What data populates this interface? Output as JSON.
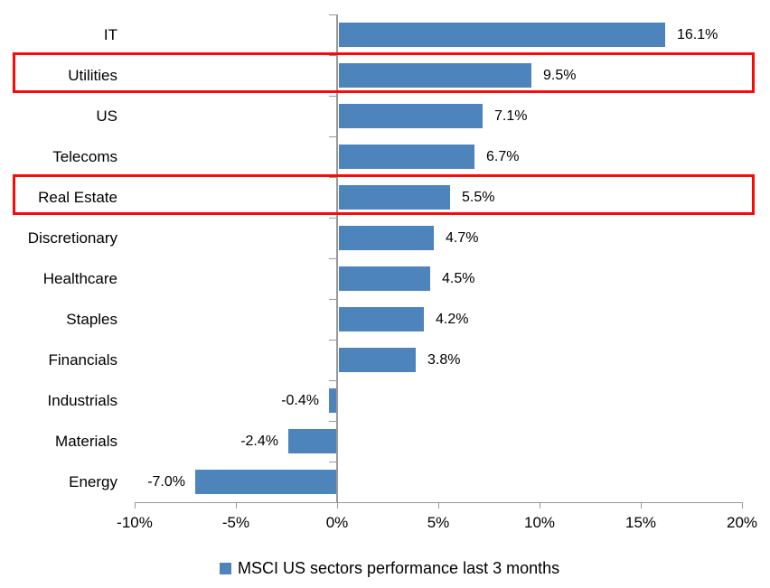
{
  "chart_data": {
    "type": "bar",
    "orientation": "horizontal",
    "categories": [
      "IT",
      "Utilities",
      "US",
      "Telecoms",
      "Real Estate",
      "Discretionary",
      "Healthcare",
      "Staples",
      "Financials",
      "Industrials",
      "Materials",
      "Energy"
    ],
    "values": [
      16.1,
      9.5,
      7.1,
      6.7,
      5.5,
      4.7,
      4.5,
      4.2,
      3.8,
      -0.4,
      -2.4,
      -7.0
    ],
    "value_labels": [
      "16.1%",
      "9.5%",
      "7.1%",
      "6.7%",
      "5.5%",
      "4.7%",
      "4.5%",
      "4.2%",
      "3.8%",
      "-0.4%",
      "-2.4%",
      "-7.0%"
    ],
    "highlighted_categories": [
      "Utilities",
      "Real Estate"
    ],
    "x_axis": {
      "min": -10,
      "max": 20,
      "tick_values": [
        -10,
        -5,
        0,
        5,
        10,
        15,
        20
      ],
      "ticks": [
        "-10%",
        "-5%",
        "0%",
        "5%",
        "10%",
        "15%",
        "20%"
      ]
    },
    "legend": {
      "label": "MSCI US sectors performance last 3 months",
      "position": "bottom"
    },
    "grid": false
  },
  "colors": {
    "bar": "#4D84BC",
    "highlight_box": "#FB0905",
    "axis": "#999999",
    "text": "#000000",
    "background": "#FFFFFF"
  }
}
